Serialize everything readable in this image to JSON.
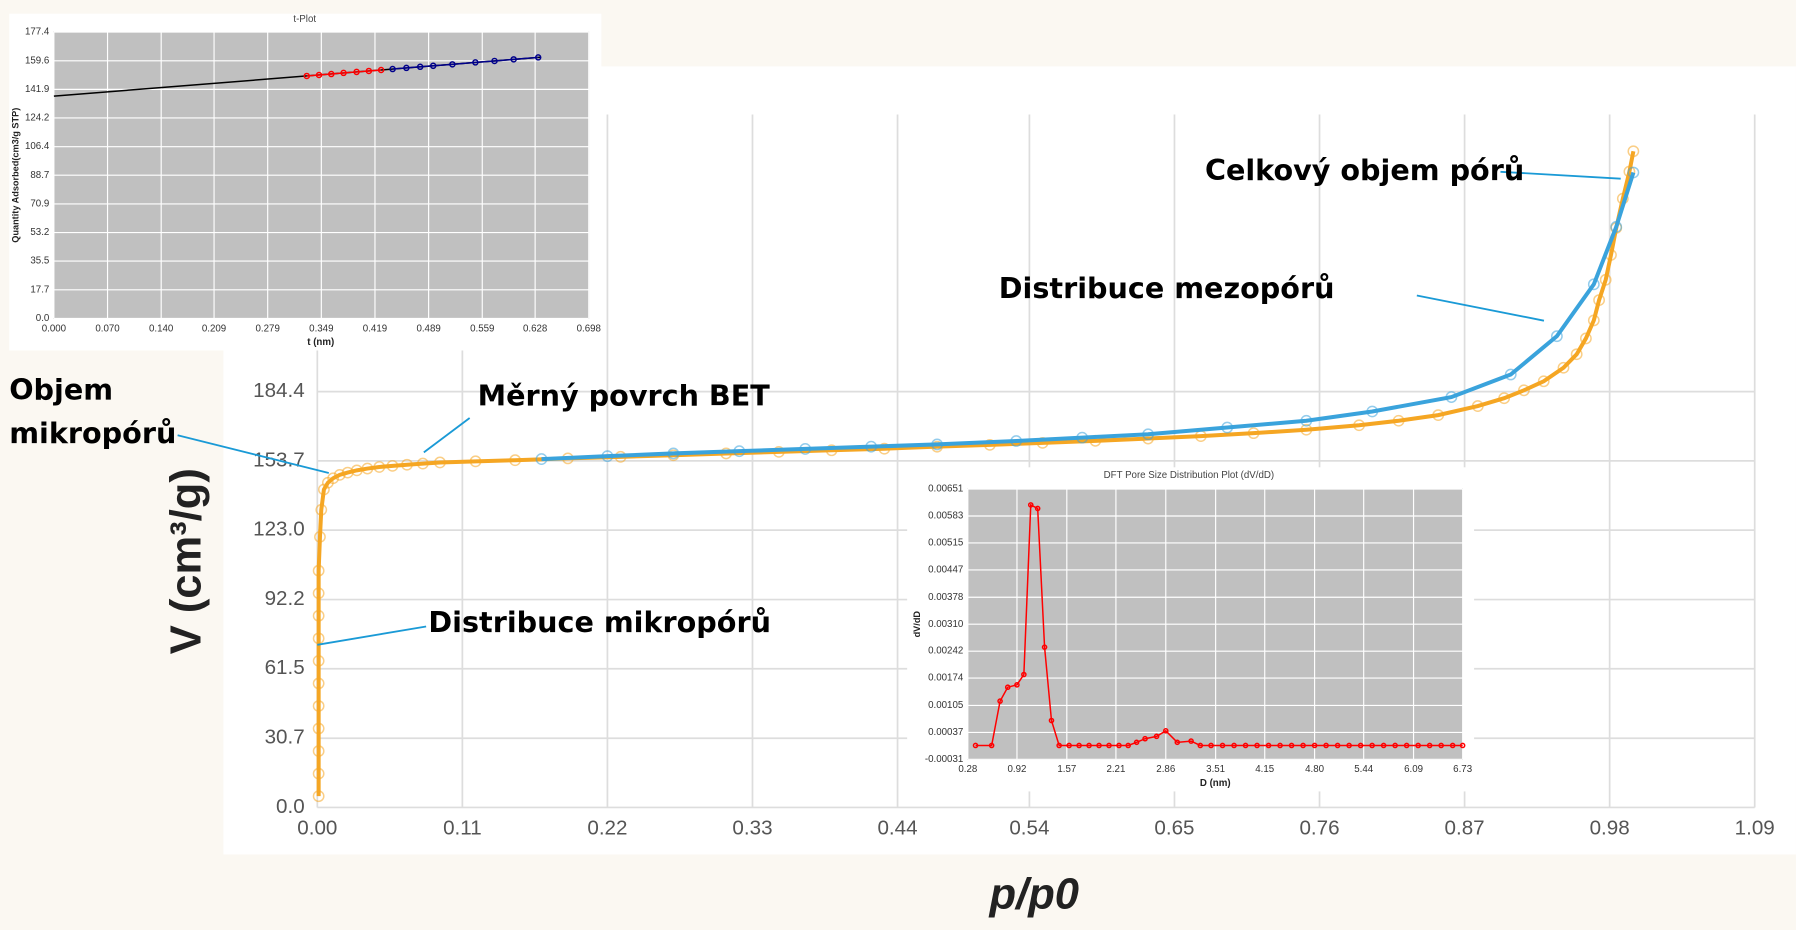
{
  "chart_data": [
    {
      "type": "line",
      "xlabel": "p/p0",
      "ylabel": "V (cm³/g)",
      "xlim": [
        0,
        1.09
      ],
      "xticks": [
        {
          "value": 0,
          "label": "0.00"
        },
        0.11,
        0.22,
        0.33,
        0.44,
        0.54,
        0.65,
        0.76,
        0.87,
        0.98,
        1.09
      ],
      "ylim": [
        0,
        307.3
      ],
      "yticks": [
        {
          "value": 0,
          "label": "0.0"
        },
        30.7,
        61.5,
        92.2,
        {
          "value": 123,
          "label": "123.0"
        },
        153.7,
        184.4
      ],
      "grid": true,
      "annotations": [
        "Celkový objem pórů",
        "Distribuce mezopórů",
        "Měrný povrch BET",
        "Objem",
        "mikropórů",
        "Distribuce mikropórů"
      ],
      "series": [
        {
          "color": "#f5a623",
          "markers": true,
          "x": [
            0.001,
            0.001,
            0.001,
            0.001,
            0.001,
            0.001,
            0.001,
            0.001,
            0.001,
            0.001,
            0.001,
            0.002,
            0.003,
            0.005,
            0.008,
            0.012,
            0.017,
            0.023,
            0.03,
            0.038,
            0.047,
            0.057,
            0.068,
            0.08,
            0.093,
            0.12,
            0.15,
            0.19,
            0.23,
            0.27,
            0.31,
            0.35,
            0.39,
            0.43,
            0.47,
            0.51,
            0.55,
            0.59,
            0.63,
            0.67,
            0.71,
            0.75,
            0.79,
            0.82,
            0.85,
            0.88,
            0.9,
            0.915,
            0.93,
            0.945,
            0.955,
            0.962,
            0.968,
            0.972,
            0.977,
            0.981,
            0.985,
            0.99,
            0.995,
            0.998
          ],
          "values": [
            5,
            15,
            25,
            35,
            45,
            55,
            65,
            75,
            85,
            95,
            105,
            120,
            132,
            141,
            144,
            146,
            147.5,
            148.5,
            149.5,
            150.3,
            151,
            151.5,
            152,
            152.5,
            153,
            153.5,
            154,
            154.8,
            155.5,
            156.2,
            157,
            157.7,
            158.4,
            159.1,
            160,
            160.8,
            161.7,
            162.6,
            163.6,
            164.7,
            166,
            167.5,
            169.5,
            171.5,
            174,
            178,
            181.5,
            185,
            189,
            195,
            201,
            208,
            216,
            225,
            234,
            245,
            257,
            270,
            282,
            291
          ]
        },
        {
          "color": "#3aa3dc",
          "markers": true,
          "x": [
            0.17,
            0.22,
            0.27,
            0.32,
            0.37,
            0.42,
            0.47,
            0.53,
            0.58,
            0.63,
            0.69,
            0.75,
            0.8,
            0.86,
            0.905,
            0.94,
            0.968,
            0.985,
            0.998
          ],
          "values": [
            154.5,
            155.8,
            157,
            158,
            159,
            160,
            161,
            162.5,
            164,
            165.5,
            168.5,
            171.5,
            175.6,
            182,
            192,
            209,
            232,
            257.5,
            281.6
          ]
        }
      ]
    },
    {
      "type": "line",
      "title": "t-Plot",
      "xlabel": "t (nm)",
      "ylabel": "Quantity Adsorbed(cm3/g STP)",
      "xlim": [
        0,
        0.698
      ],
      "xticks": [
        {
          "value": 0,
          "label": "0.000"
        },
        {
          "value": 0.07,
          "label": "0.070"
        },
        {
          "value": 0.14,
          "label": "0.140"
        },
        0.209,
        0.279,
        0.349,
        0.419,
        0.489,
        0.559,
        0.628,
        0.698
      ],
      "ylim": [
        0,
        177.4
      ],
      "yticks": [
        {
          "value": 0,
          "label": "0.0"
        },
        17.7,
        35.5,
        53.2,
        70.9,
        88.7,
        106.4,
        124.2,
        141.9,
        159.6,
        177.4
      ],
      "grid": true,
      "series": [
        {
          "color": "#000000",
          "markers": false,
          "x": [
            0,
            0.635
          ],
          "values": [
            137.7,
            161.8
          ]
        },
        {
          "color": "#ff0000",
          "markers": true,
          "x": [
            0.33,
            0.346,
            0.362,
            0.378,
            0.395,
            0.411,
            0.427
          ],
          "values": [
            150.2,
            150.8,
            151.4,
            152.1,
            152.7,
            153.3,
            153.9
          ]
        },
        {
          "color": "#00008b",
          "markers": true,
          "x": [
            0.442,
            0.46,
            0.478,
            0.495,
            0.52,
            0.55,
            0.575,
            0.6,
            0.632
          ],
          "values": [
            154.5,
            155.2,
            155.9,
            156.5,
            157.4,
            158.6,
            159.5,
            160.5,
            161.7
          ]
        }
      ]
    },
    {
      "type": "line",
      "title": "DFT Pore Size Distribution Plot (dV/dD)",
      "xlabel": "D (nm)",
      "ylabel": "dV/dD",
      "xlim": [
        0.28,
        6.73
      ],
      "xticks": [
        0.28,
        0.92,
        1.57,
        2.21,
        2.86,
        3.51,
        4.15,
        {
          "value": 4.8,
          "label": "4.80"
        },
        5.44,
        6.09,
        6.73
      ],
      "ylim": [
        -0.00031,
        0.00651
      ],
      "yticks": [
        -0.00031,
        0.00037,
        0.00105,
        0.00174,
        0.00242,
        {
          "value": 0.0031,
          "label": "0.00310"
        },
        0.00378,
        0.00447,
        0.00515,
        0.00583,
        0.00651
      ],
      "grid": true,
      "series": [
        {
          "color": "#ff0000",
          "markers": true,
          "x": [
            0.38,
            0.59,
            0.7,
            0.8,
            0.92,
            1.01,
            1.1,
            1.19,
            1.28,
            1.37,
            1.47,
            1.6,
            1.73,
            1.86,
            1.99,
            2.12,
            2.25,
            2.37,
            2.48,
            2.59,
            2.74,
            2.86,
            3.01,
            3.19,
            3.31,
            3.45,
            3.6,
            3.75,
            3.9,
            4.05,
            4.2,
            4.35,
            4.5,
            4.65,
            4.8,
            4.95,
            5.1,
            5.25,
            5.4,
            5.55,
            5.7,
            5.85,
            6.0,
            6.15,
            6.3,
            6.45,
            6.6,
            6.73
          ],
          "values": [
            4e-05,
            4e-05,
            0.00116,
            0.00151,
            0.00157,
            0.00183,
            0.00611,
            0.00602,
            0.00252,
            0.00067,
            4e-05,
            4e-05,
            4e-05,
            4e-05,
            4e-05,
            4e-05,
            4e-05,
            4e-05,
            0.00012,
            0.00021,
            0.00027,
            0.00041,
            0.00012,
            0.00015,
            4e-05,
            4e-05,
            4e-05,
            4e-05,
            4e-05,
            4e-05,
            4e-05,
            4e-05,
            4e-05,
            4e-05,
            4e-05,
            4e-05,
            4e-05,
            4e-05,
            4e-05,
            4e-05,
            4e-05,
            4e-05,
            4e-05,
            4e-05,
            4e-05,
            4e-05,
            4e-05,
            4e-05
          ]
        }
      ]
    }
  ]
}
